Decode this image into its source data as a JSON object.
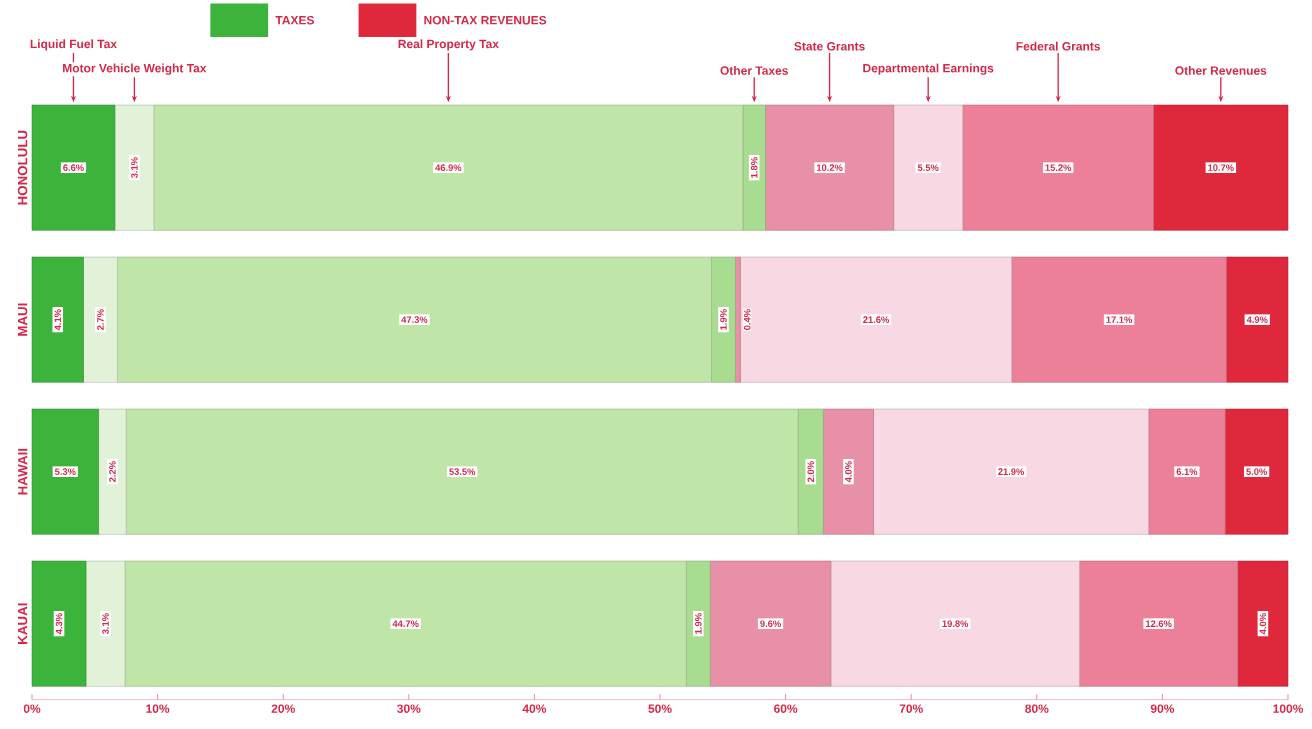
{
  "chart_data": {
    "type": "bar",
    "orientation": "horizontal",
    "stacked": true,
    "categories": [
      "HONOLULU",
      "MAUI",
      "HAWAII",
      "KAUAI"
    ],
    "series": [
      {
        "name": "Liquid Fuel Tax",
        "color": "#3cb43c",
        "values": [
          6.6,
          4.1,
          5.3,
          4.3
        ],
        "value_labels": [
          "6.6%",
          "4.1%",
          "5.3%",
          "4.3%"
        ]
      },
      {
        "name": "Motor Vehicle Weight Tax",
        "color": "#e2f2d8",
        "values": [
          3.1,
          2.7,
          2.2,
          3.1
        ],
        "value_labels": [
          "3.1%",
          "2.7%",
          "2.2%",
          "3.1%"
        ]
      },
      {
        "name": "Real Property Tax",
        "color": "#bfe6a8",
        "values": [
          46.9,
          47.3,
          53.5,
          44.7
        ],
        "value_labels": [
          "46.9%",
          "47.3%",
          "53.5%",
          "44.7%"
        ]
      },
      {
        "name": "Other Taxes",
        "color": "#a8dc90",
        "values": [
          1.8,
          1.9,
          2.0,
          1.9
        ],
        "value_labels": [
          "1.8%",
          "1.9%",
          "2.0%",
          "1.9%"
        ]
      },
      {
        "name": "State Grants",
        "color": "#e890a8",
        "values": [
          10.2,
          0.4,
          4.0,
          9.6
        ],
        "value_labels": [
          "10.2%",
          "0.4%",
          "4.0%",
          "9.6%"
        ]
      },
      {
        "name": "Departmental Earnings",
        "color": "#f8d8e2",
        "values": [
          5.5,
          21.6,
          21.9,
          19.8
        ],
        "value_labels": [
          "5.5%",
          "21.6%",
          "21.9%",
          "19.8%"
        ]
      },
      {
        "name": "Federal Grants",
        "color": "#eb8098",
        "values": [
          15.2,
          17.1,
          6.1,
          12.6
        ],
        "value_labels": [
          "15.2%",
          "17.1%",
          "6.1%",
          "12.6%"
        ]
      },
      {
        "name": "Other Revenues",
        "color": "#e0283c",
        "values": [
          10.7,
          4.9,
          5.0,
          4.0
        ],
        "value_labels": [
          "10.7%",
          "4.9%",
          "5.0%",
          "4.0%"
        ]
      }
    ],
    "xlim": [
      0,
      100
    ],
    "xticks": [
      {
        "value": 0,
        "label": "0%"
      },
      {
        "value": 10,
        "label": "10%"
      },
      {
        "value": 20,
        "label": "20%"
      },
      {
        "value": 30,
        "label": "30%"
      },
      {
        "value": 40,
        "label": "40%"
      },
      {
        "value": 50,
        "label": "50%"
      },
      {
        "value": 60,
        "label": "60%"
      },
      {
        "value": 70,
        "label": "70%"
      },
      {
        "value": 80,
        "label": "80%"
      },
      {
        "value": 90,
        "label": "90%"
      },
      {
        "value": 100,
        "label": "100%"
      }
    ],
    "annotations": [
      "TAXES",
      "NON-TAX REVENUES"
    ]
  }
}
